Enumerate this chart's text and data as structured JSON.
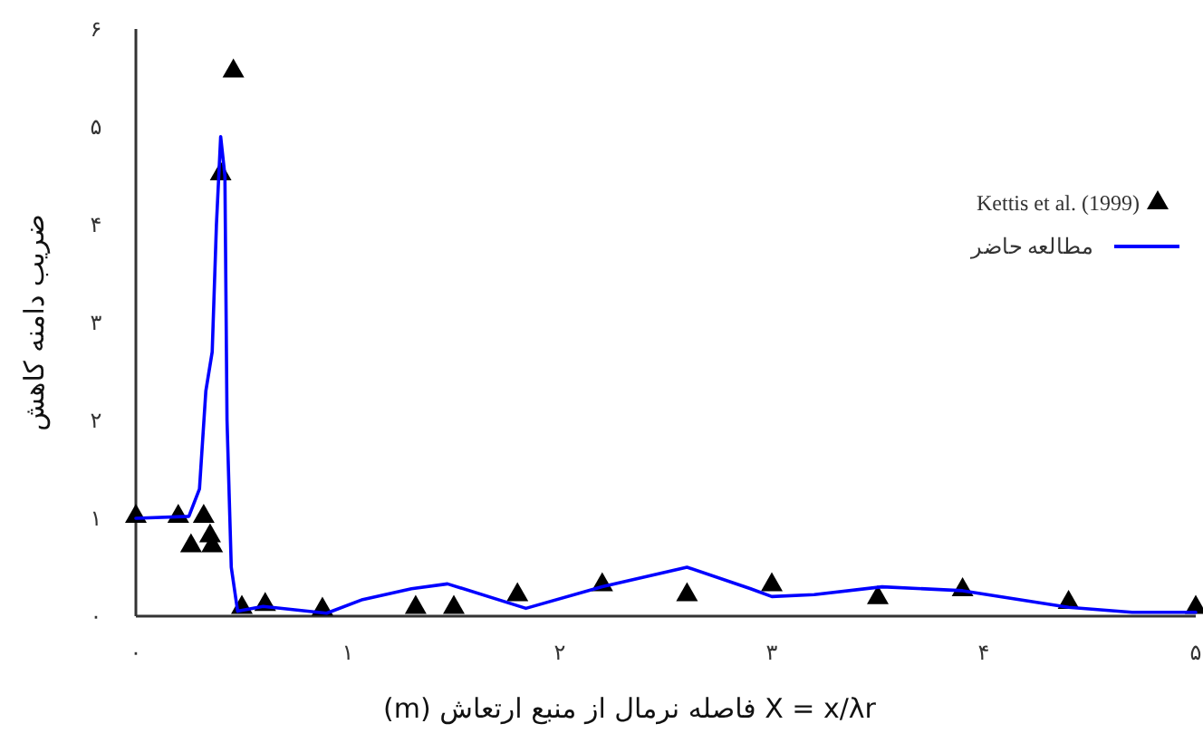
{
  "chart_data": {
    "type": "line",
    "xlabel": "X = x/λr فاصله نرمال از منبع ارتعاش (m)",
    "ylabel": "ضریب دامنه کاهش",
    "xlim": [
      0,
      5
    ],
    "ylim": [
      0,
      6
    ],
    "xticks": [
      {
        "value": 0,
        "label": "۰"
      },
      {
        "value": 1,
        "label": "۱"
      },
      {
        "value": 2,
        "label": "۲"
      },
      {
        "value": 3,
        "label": "۳"
      },
      {
        "value": 4,
        "label": "۴"
      },
      {
        "value": 5,
        "label": "۵"
      }
    ],
    "yticks": [
      {
        "value": 0,
        "label": "۰"
      },
      {
        "value": 1,
        "label": "۱"
      },
      {
        "value": 2,
        "label": "۲"
      },
      {
        "value": 3,
        "label": "۳"
      },
      {
        "value": 4,
        "label": "۴"
      },
      {
        "value": 5,
        "label": "۵"
      },
      {
        "value": 6,
        "label": "۶"
      }
    ],
    "legend": "right",
    "series": [
      {
        "name": "Kettis et al. (1999)",
        "type": "scatter",
        "marker": "triangle",
        "color": "#000000",
        "x": [
          0,
          0.2,
          0.32,
          0.26,
          0.35,
          0.36,
          0.46,
          0.4,
          0.5,
          0.61,
          0.88,
          1.32,
          1.5,
          1.8,
          2.2,
          2.6,
          3.0,
          3.5,
          3.9,
          4.4,
          5.0
        ],
        "values": [
          1.0,
          1.0,
          1.0,
          0.7,
          0.8,
          0.7,
          5.55,
          4.5,
          0.07,
          0.1,
          0.05,
          0.07,
          0.07,
          0.2,
          0.3,
          0.2,
          0.3,
          0.17,
          0.25,
          0.12,
          0.07
        ]
      },
      {
        "name": "مطالعه حاضر",
        "marker": "none",
        "color": "#0000ff",
        "x": [
          0,
          0.25,
          0.3,
          0.33,
          0.36,
          0.38,
          0.4,
          0.42,
          0.43,
          0.45,
          0.48,
          0.6,
          0.9,
          1.07,
          1.3,
          1.47,
          1.84,
          2.2,
          2.6,
          2.9,
          3.0,
          3.2,
          3.52,
          3.9,
          4.4,
          4.7,
          5.0
        ],
        "values": [
          1.0,
          1.02,
          1.3,
          2.3,
          2.7,
          4.0,
          4.9,
          4.5,
          2.0,
          0.5,
          0.05,
          0.1,
          0.03,
          0.17,
          0.28,
          0.33,
          0.08,
          0.3,
          0.5,
          0.28,
          0.2,
          0.22,
          0.3,
          0.26,
          0.09,
          0.04,
          0.04
        ]
      }
    ]
  }
}
